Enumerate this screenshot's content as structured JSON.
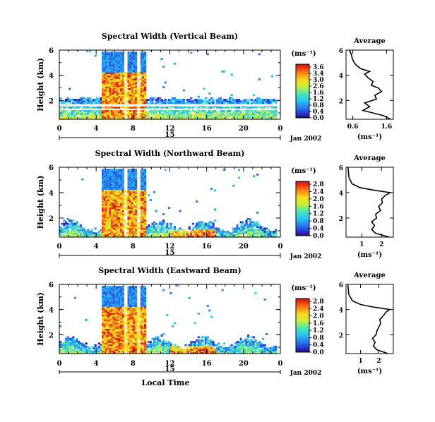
{
  "chart_data": [
    {
      "type": "heatmap",
      "title": "Spectral Width (Vertical Beam)",
      "ylabel": "Height (km)",
      "yticks": [
        "2",
        "4",
        "6"
      ],
      "xticks": [
        "0",
        "4",
        "8",
        "12",
        "16",
        "20",
        "0"
      ],
      "xlim": [
        0,
        24
      ],
      "ylim": [
        0.5,
        6
      ],
      "colorbar": {
        "unit": "(ms⁻¹)",
        "labels": [
          "3.6",
          "3.4",
          "3.0",
          "2.6",
          "1.6",
          "1.2",
          "0.8",
          "0.4",
          "0.0"
        ],
        "range": [
          0,
          3.6
        ]
      },
      "date_row": {
        "mid": "15",
        "right": "Jan 2002"
      },
      "average": {
        "title": "Average",
        "xlabel": "(ms⁻¹)",
        "xticks": [
          "0.6",
          "1.6"
        ],
        "xlim": [
          0.4,
          1.8
        ],
        "yticks": [
          "2",
          "4",
          "6"
        ],
        "ylim": [
          0.5,
          6
        ],
        "profile": [
          {
            "h": 0.5,
            "v": 1.72
          },
          {
            "h": 0.8,
            "v": 1.5
          },
          {
            "h": 1.0,
            "v": 1.2
          },
          {
            "h": 1.2,
            "v": 0.9
          },
          {
            "h": 1.5,
            "v": 1.1
          },
          {
            "h": 1.8,
            "v": 0.95
          },
          {
            "h": 2.1,
            "v": 1.3
          },
          {
            "h": 2.4,
            "v": 1.25
          },
          {
            "h": 2.7,
            "v": 1.45
          },
          {
            "h": 3.0,
            "v": 1.35
          },
          {
            "h": 3.2,
            "v": 1.15
          },
          {
            "h": 3.5,
            "v": 1.2
          },
          {
            "h": 3.8,
            "v": 1.05
          },
          {
            "h": 4.1,
            "v": 0.95
          },
          {
            "h": 4.3,
            "v": 1.1
          },
          {
            "h": 4.5,
            "v": 0.85
          },
          {
            "h": 4.8,
            "v": 0.7
          },
          {
            "h": 5.1,
            "v": 0.62
          },
          {
            "h": 5.4,
            "v": 0.58
          },
          {
            "h": 5.7,
            "v": 0.55
          },
          {
            "h": 6.0,
            "v": 0.5
          }
        ]
      }
    },
    {
      "type": "heatmap",
      "title": "Spectral Width (Northward Beam)",
      "ylabel": "Height (km)",
      "yticks": [
        "2",
        "4",
        "6"
      ],
      "xticks": [
        "0",
        "4",
        "8",
        "12",
        "16",
        "20",
        "0"
      ],
      "xlim": [
        0,
        24
      ],
      "ylim": [
        0.5,
        6
      ],
      "colorbar": {
        "unit": "(ms⁻¹)",
        "labels": [
          "2.8",
          "2.4",
          "2.0",
          "1.6",
          "1.2",
          "0.8",
          "0.4",
          "0.0"
        ],
        "range": [
          0,
          2.8
        ]
      },
      "date_row": {
        "mid": "15",
        "right": "Jan 2002"
      },
      "average": {
        "title": "Average",
        "xlabel": "(ms⁻¹)",
        "xticks": [
          "1",
          "2"
        ],
        "xlim": [
          0.2,
          2.6
        ],
        "yticks": [
          "2",
          "4",
          "6"
        ],
        "ylim": [
          0.5,
          6
        ],
        "profile": [
          {
            "h": 0.5,
            "v": 2.4
          },
          {
            "h": 0.8,
            "v": 1.7
          },
          {
            "h": 1.1,
            "v": 1.5
          },
          {
            "h": 1.4,
            "v": 1.65
          },
          {
            "h": 1.7,
            "v": 1.5
          },
          {
            "h": 2.0,
            "v": 1.75
          },
          {
            "h": 2.3,
            "v": 1.7
          },
          {
            "h": 2.6,
            "v": 1.95
          },
          {
            "h": 2.9,
            "v": 1.85
          },
          {
            "h": 3.2,
            "v": 2.05
          },
          {
            "h": 3.5,
            "v": 2.0
          },
          {
            "h": 3.8,
            "v": 2.2
          },
          {
            "h": 4.0,
            "v": 2.45
          },
          {
            "h": 4.2,
            "v": 1.6
          },
          {
            "h": 4.4,
            "v": 0.9
          },
          {
            "h": 4.7,
            "v": 0.5
          },
          {
            "h": 5.2,
            "v": 0.35
          },
          {
            "h": 6.0,
            "v": 0.3
          }
        ]
      }
    },
    {
      "type": "heatmap",
      "title": "Spectral Width (Eastward Beam)",
      "ylabel": "Height (km)",
      "yticks": [
        "2",
        "4",
        "6"
      ],
      "xticks": [
        "0",
        "4",
        "8",
        "12",
        "16",
        "20",
        "0"
      ],
      "xlim": [
        0,
        24
      ],
      "ylim": [
        0.5,
        6
      ],
      "colorbar": {
        "unit": "(ms⁻¹)",
        "labels": [
          "2.8",
          "2.4",
          "2.0",
          "1.6",
          "1.2",
          "0.8",
          "0.4",
          "0.0"
        ],
        "range": [
          0,
          2.8
        ]
      },
      "date_row": {
        "mid": "15",
        "right": "Jan 2002"
      },
      "xlabel": "Local Time",
      "average": {
        "title": "Average",
        "xlabel": "(ms⁻¹)",
        "xticks": [
          "1",
          "2"
        ],
        "xlim": [
          0.2,
          2.8
        ],
        "yticks": [
          "2",
          "4",
          "6"
        ],
        "ylim": [
          0.5,
          6
        ],
        "profile": [
          {
            "h": 0.5,
            "v": 2.5
          },
          {
            "h": 0.8,
            "v": 1.9
          },
          {
            "h": 1.1,
            "v": 1.7
          },
          {
            "h": 1.4,
            "v": 1.8
          },
          {
            "h": 1.7,
            "v": 1.65
          },
          {
            "h": 2.0,
            "v": 1.85
          },
          {
            "h": 2.3,
            "v": 1.9
          },
          {
            "h": 2.6,
            "v": 2.0
          },
          {
            "h": 2.9,
            "v": 2.1
          },
          {
            "h": 3.2,
            "v": 2.05
          },
          {
            "h": 3.5,
            "v": 2.25
          },
          {
            "h": 3.8,
            "v": 2.4
          },
          {
            "h": 4.0,
            "v": 2.6
          },
          {
            "h": 4.2,
            "v": 1.7
          },
          {
            "h": 4.4,
            "v": 1.0
          },
          {
            "h": 4.7,
            "v": 0.55
          },
          {
            "h": 5.2,
            "v": 0.35
          },
          {
            "h": 6.0,
            "v": 0.3
          }
        ]
      }
    }
  ]
}
